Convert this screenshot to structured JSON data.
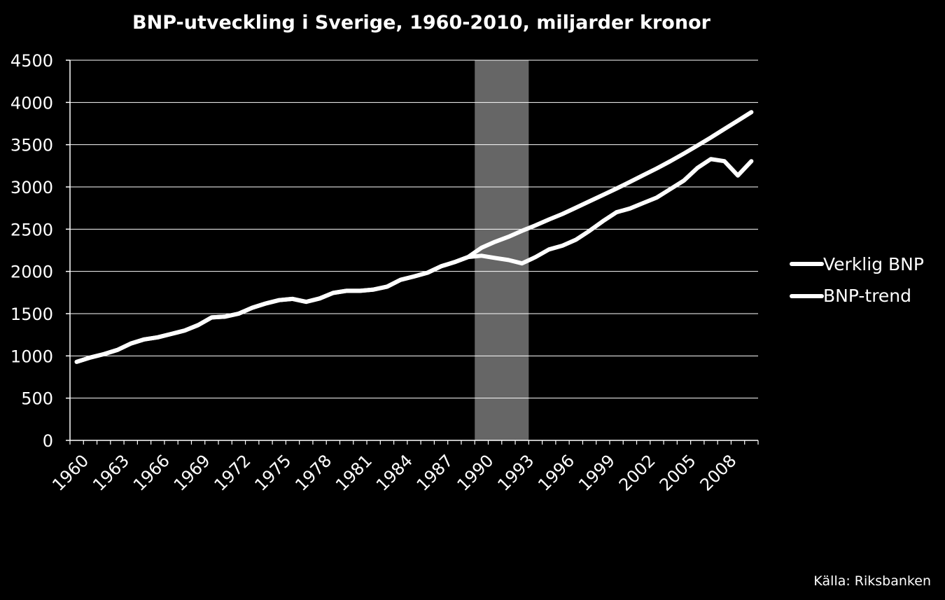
{
  "chart_data": {
    "type": "line",
    "title": "BNP-utveckling i Sverige, 1960-2010, miljarder kronor",
    "xlabel": "",
    "ylabel": "",
    "ylim": [
      0,
      4500
    ],
    "y_ticks": [
      0,
      500,
      1000,
      1500,
      2000,
      2500,
      3000,
      3500,
      4000,
      4500
    ],
    "x_tick_labels": [
      "1960",
      "1963",
      "1966",
      "1969",
      "1972",
      "1975",
      "1978",
      "1981",
      "1984",
      "1987",
      "1990",
      "1993",
      "1996",
      "1999",
      "2002",
      "2005",
      "2008"
    ],
    "x": [
      1960,
      1961,
      1962,
      1963,
      1964,
      1965,
      1966,
      1967,
      1968,
      1969,
      1970,
      1971,
      1972,
      1973,
      1974,
      1975,
      1976,
      1977,
      1978,
      1979,
      1980,
      1981,
      1982,
      1983,
      1984,
      1985,
      1986,
      1987,
      1988,
      1989,
      1990,
      1991,
      1992,
      1993,
      1994,
      1995,
      1996,
      1997,
      1998,
      1999,
      2000,
      2001,
      2002,
      2003,
      2004,
      2005,
      2006,
      2007,
      2008,
      2009,
      2010
    ],
    "series": [
      {
        "name": "Verklig BNP",
        "color": "#ffffff",
        "values": [
          930,
          980,
          1020,
          1070,
          1145,
          1195,
          1220,
          1260,
          1300,
          1365,
          1455,
          1465,
          1500,
          1570,
          1620,
          1660,
          1675,
          1640,
          1680,
          1745,
          1770,
          1770,
          1785,
          1820,
          1900,
          1940,
          1985,
          2060,
          2110,
          2170,
          2185,
          2160,
          2135,
          2095,
          2170,
          2260,
          2305,
          2375,
          2480,
          2595,
          2700,
          2745,
          2810,
          2875,
          2975,
          3075,
          3225,
          3330,
          3305,
          3135,
          3305
        ]
      },
      {
        "name": "BNP-trend",
        "color": "#ffffff",
        "values": [
          930,
          980,
          1020,
          1070,
          1145,
          1195,
          1220,
          1260,
          1300,
          1365,
          1455,
          1465,
          1500,
          1570,
          1620,
          1660,
          1675,
          1640,
          1680,
          1745,
          1770,
          1770,
          1785,
          1820,
          1900,
          1940,
          1985,
          2060,
          2110,
          2170,
          2280,
          2350,
          2410,
          2480,
          2545,
          2615,
          2680,
          2755,
          2830,
          2905,
          2980,
          3060,
          3140,
          3220,
          3305,
          3395,
          3490,
          3585,
          3685,
          3785,
          3885
        ]
      }
    ],
    "shaded_region": {
      "x_start": 1989.5,
      "x_end": 1993.5,
      "color": "#666666"
    },
    "grid": true,
    "legend_position": "right",
    "background": "#000000"
  },
  "source_note": "Källa: Riksbanken"
}
